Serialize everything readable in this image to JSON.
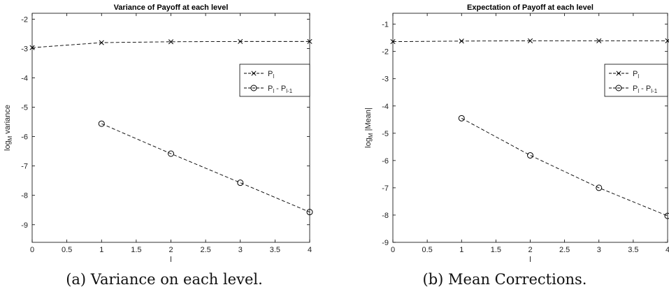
{
  "chart_data": [
    {
      "type": "line",
      "title": "Variance of Payoff at each level",
      "xlabel": "l",
      "ylabel_base": "log",
      "ylabel_sub": "M",
      "ylabel_rest": " variance",
      "xlim": [
        0,
        4
      ],
      "ylim": [
        -9.6,
        -1.8
      ],
      "xticks": [
        0,
        0.5,
        1,
        1.5,
        2,
        2.5,
        3,
        3.5,
        4
      ],
      "xtick_labels": [
        "0",
        "0.5",
        "1",
        "1.5",
        "2",
        "2.5",
        "3",
        "3.5",
        "4"
      ],
      "yticks": [
        -9,
        -8,
        -7,
        -6,
        -5,
        -4,
        -3,
        -2
      ],
      "ytick_labels": [
        "-9",
        "-8",
        "-7",
        "-6",
        "-5",
        "-4",
        "-3",
        "-2"
      ],
      "grid": false,
      "legend_position": "top-right",
      "series": [
        {
          "label_main": "P",
          "label_sub": "l",
          "marker": "x",
          "x": [
            0,
            1,
            2,
            3,
            4
          ],
          "y": [
            -2.97,
            -2.8,
            -2.77,
            -2.76,
            -2.76
          ]
        },
        {
          "label_main": "P",
          "label_sub": "l",
          "label_mid": " - P",
          "label_sub2": "l-1",
          "marker": "o",
          "x": [
            1,
            2,
            3,
            4
          ],
          "y": [
            -5.56,
            -6.58,
            -7.57,
            -8.57
          ]
        }
      ],
      "caption": "(a) Variance on each level."
    },
    {
      "type": "line",
      "title": "Expectation of Payoff at each level",
      "xlabel": "l",
      "ylabel_base": "log",
      "ylabel_sub": "M",
      "ylabel_rest": " |Mean|",
      "xlim": [
        0,
        4
      ],
      "ylim": [
        -9,
        -0.6
      ],
      "xticks": [
        0,
        0.5,
        1,
        1.5,
        2,
        2.5,
        3,
        3.5,
        4
      ],
      "xtick_labels": [
        "0",
        "0.5",
        "1",
        "1.5",
        "2",
        "2.5",
        "3",
        "3.5",
        "4"
      ],
      "yticks": [
        -9,
        -8,
        -7,
        -6,
        -5,
        -4,
        -3,
        -2,
        -1
      ],
      "ytick_labels": [
        "-9",
        "-8",
        "-7",
        "-6",
        "-5",
        "-4",
        "-3",
        "-2",
        "-1"
      ],
      "grid": false,
      "legend_position": "top-right",
      "series": [
        {
          "label_main": "P",
          "label_sub": "l",
          "marker": "x",
          "x": [
            0,
            1,
            2,
            3,
            4
          ],
          "y": [
            -1.64,
            -1.62,
            -1.61,
            -1.61,
            -1.61
          ]
        },
        {
          "label_main": "P",
          "label_sub": "l",
          "label_mid": " - P",
          "label_sub2": "l-1",
          "marker": "o",
          "x": [
            1,
            2,
            3,
            4
          ],
          "y": [
            -4.45,
            -5.81,
            -7.0,
            -8.03
          ]
        }
      ],
      "caption": "(b) Mean Corrections."
    }
  ]
}
